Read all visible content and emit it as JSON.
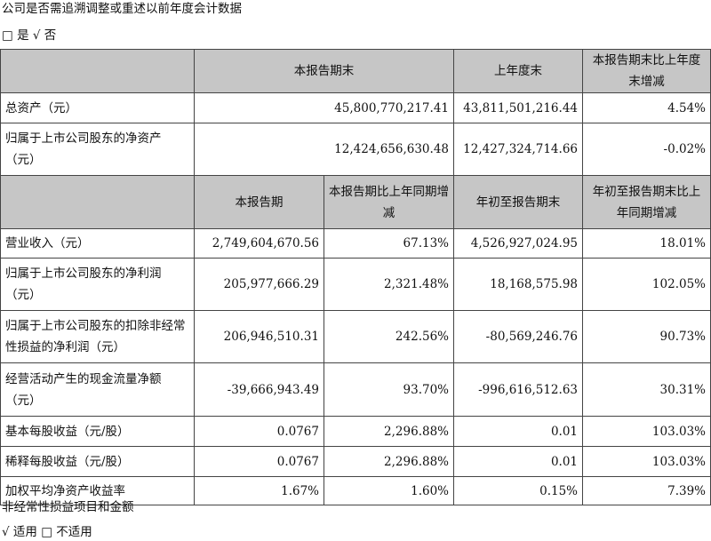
{
  "heading": "公司是否需追溯调整或重述以前年度会计数据",
  "restate_choice": {
    "yes_box": "□",
    "yes_label": "是",
    "no_mark": "√",
    "no_label": "否"
  },
  "table1": {
    "headers": [
      "",
      "本报告期末",
      "上年度末",
      "本报告期末比上年度末增减"
    ],
    "rows": [
      [
        "总资产（元）",
        "45,800,770,217.41",
        "43,811,501,216.44",
        "4.54%"
      ],
      [
        "归属于上市公司股东的净资产（元）",
        "12,424,656,630.48",
        "12,427,324,714.66",
        "-0.02%"
      ]
    ]
  },
  "table2": {
    "headers": [
      "",
      "本报告期",
      "本报告期比上年同期增减",
      "年初至报告期末",
      "年初至报告期末比上年同期增减"
    ],
    "rows": [
      [
        "营业收入（元）",
        "2,749,604,670.56",
        "67.13%",
        "4,526,927,024.95",
        "18.01%"
      ],
      [
        "归属于上市公司股东的净利润（元）",
        "205,977,666.29",
        "2,321.48%",
        "18,168,575.98",
        "102.05%"
      ],
      [
        "归属于上市公司股东的扣除非经常性损益的净利润（元）",
        "206,946,510.31",
        "242.56%",
        "-80,569,246.76",
        "90.73%"
      ],
      [
        "经营活动产生的现金流量净额（元）",
        "-39,666,943.49",
        "93.70%",
        "-996,616,512.63",
        "30.31%"
      ],
      [
        "基本每股收益（元/股）",
        "0.0767",
        "2,296.88%",
        "0.01",
        "103.03%"
      ],
      [
        "稀释每股收益（元/股）",
        "0.0767",
        "2,296.88%",
        "0.01",
        "103.03%"
      ],
      [
        "加权平均净资产收益率",
        "1.67%",
        "1.60%",
        "0.15%",
        "7.39%"
      ]
    ]
  },
  "nonrec_heading": "非经常性损益项目和金额",
  "apply_choice": {
    "yes_mark": "√",
    "yes_label": "适用",
    "no_box": "□",
    "no_label": "不适用"
  }
}
